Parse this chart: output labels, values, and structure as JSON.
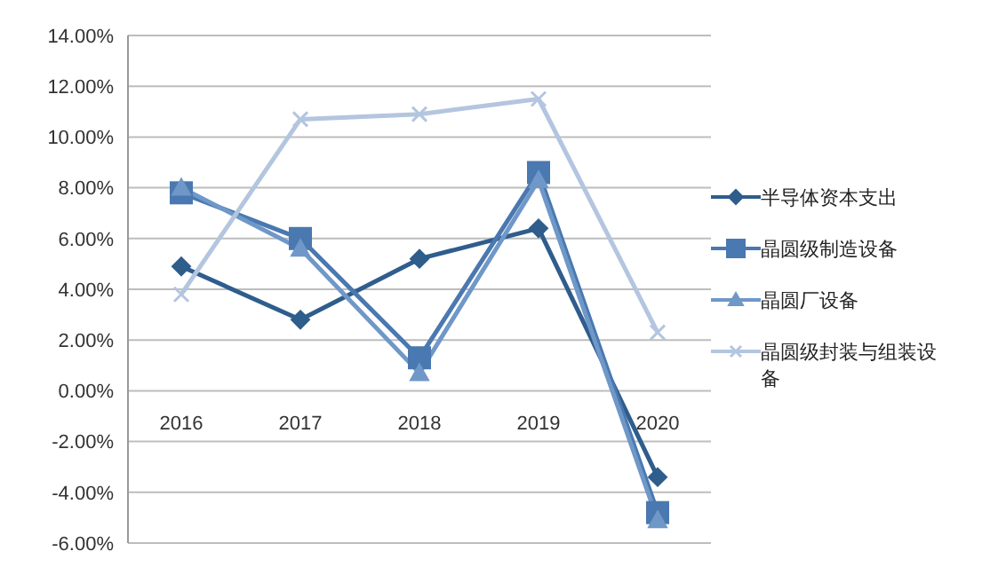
{
  "chart_data": {
    "type": "line",
    "categories": [
      "2016",
      "2017",
      "2018",
      "2019",
      "2020"
    ],
    "series": [
      {
        "name": "半导体资本支出",
        "color": "#2f5d8c",
        "marker": "diamond",
        "values": [
          4.9,
          2.8,
          5.2,
          6.4,
          -3.4
        ]
      },
      {
        "name": "晶圆级制造设备",
        "color": "#4a78b0",
        "marker": "square",
        "values": [
          7.8,
          6.0,
          1.3,
          8.6,
          -4.8
        ]
      },
      {
        "name": "晶圆厂设备",
        "color": "#6f98c8",
        "marker": "triangle",
        "values": [
          8.0,
          5.6,
          0.7,
          8.3,
          -5.1
        ]
      },
      {
        "name": "晶圆级封装与组装设备",
        "color": "#b4c5df",
        "marker": "cross",
        "values": [
          3.8,
          10.7,
          10.9,
          11.5,
          2.3
        ]
      }
    ],
    "ylim": [
      -6,
      14
    ],
    "yticks": [
      {
        "value": -6,
        "label": "-6.00%"
      },
      {
        "value": -4,
        "label": "-4.00%"
      },
      {
        "value": -2,
        "label": "-2.00%"
      },
      {
        "value": 0,
        "label": "0.00%"
      },
      {
        "value": 2,
        "label": "2.00%"
      },
      {
        "value": 4,
        "label": "4.00%"
      },
      {
        "value": 6,
        "label": "6.00%"
      },
      {
        "value": 8,
        "label": "8.00%"
      },
      {
        "value": 10,
        "label": "10.00%"
      },
      {
        "value": 12,
        "label": "12.00%"
      },
      {
        "value": 14,
        "label": "14.00%"
      }
    ],
    "grid": "y",
    "legend": "right",
    "line_style": "solid"
  }
}
